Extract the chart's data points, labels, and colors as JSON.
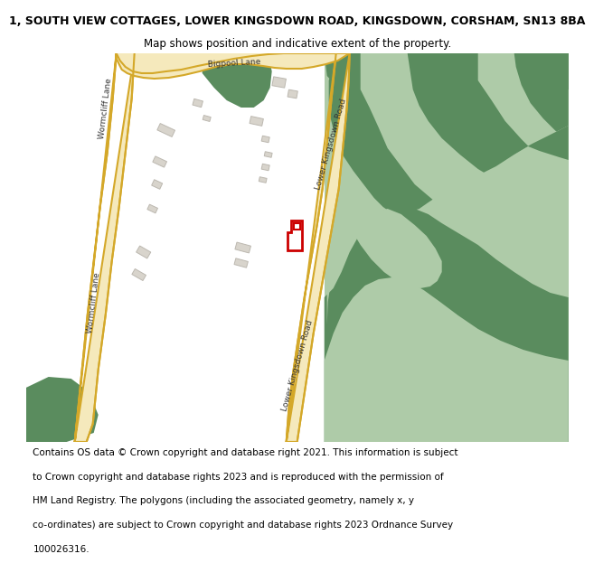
{
  "title": "1, SOUTH VIEW COTTAGES, LOWER KINGSDOWN ROAD, KINGSDOWN, CORSHAM, SN13 8BA",
  "subtitle": "Map shows position and indicative extent of the property.",
  "footer_lines": [
    "Contains OS data © Crown copyright and database right 2021. This information is subject",
    "to Crown copyright and database rights 2023 and is reproduced with the permission of",
    "HM Land Registry. The polygons (including the associated geometry, namely x, y",
    "co-ordinates) are subject to Crown copyright and database rights 2023 Ordnance Survey",
    "100026316."
  ],
  "bg_color": "#ffffff",
  "map_bg": "#f8f8f5",
  "road_fill": "#f5e9bc",
  "road_edge": "#d4a829",
  "dark_green": "#5a8c5e",
  "light_green": "#aecba8",
  "building_fill": "#d8d4cc",
  "building_edge": "#bcb8b0",
  "plot_color": "#cc0000",
  "title_fontsize": 9,
  "subtitle_fontsize": 8.5,
  "footer_fontsize": 7.5,
  "label_fontsize": 6.5
}
